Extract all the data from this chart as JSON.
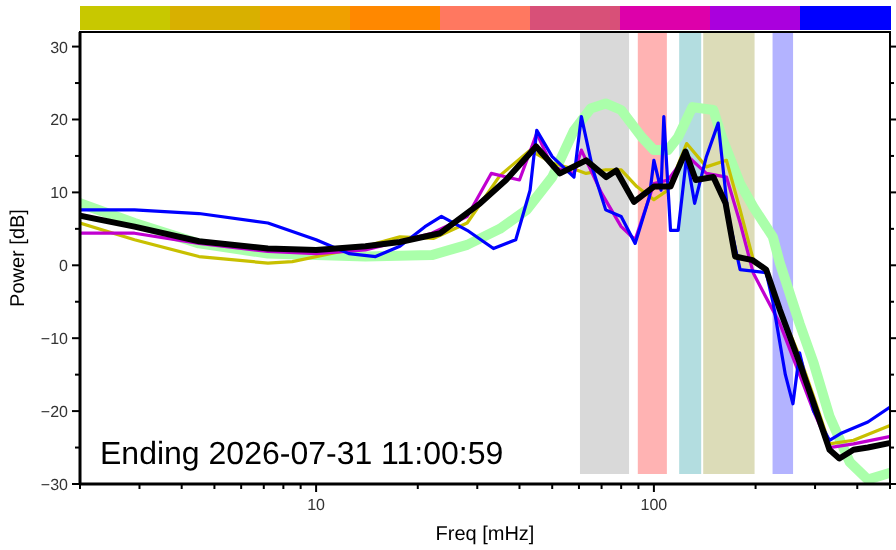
{
  "chart_data": {
    "type": "line",
    "xlabel": "Freq [mHz]",
    "ylabel": "Power [dB]",
    "log": "x",
    "xlim": [
      2,
      500
    ],
    "ylim": [
      -30,
      32
    ],
    "xticks": [
      {
        "value": 2,
        "label": null
      },
      {
        "value": 3,
        "label": null
      },
      {
        "value": 4,
        "label": null
      },
      {
        "value": 5,
        "label": null
      },
      {
        "value": 6,
        "label": null
      },
      {
        "value": 7,
        "label": null
      },
      {
        "value": 8,
        "label": null
      },
      {
        "value": 9,
        "label": null
      },
      10,
      {
        "value": 20,
        "label": null
      },
      {
        "value": 30,
        "label": null
      },
      {
        "value": 40,
        "label": null
      },
      {
        "value": 50,
        "label": null
      },
      {
        "value": 60,
        "label": null
      },
      {
        "value": 70,
        "label": null
      },
      {
        "value": 80,
        "label": null
      },
      {
        "value": 90,
        "label": null
      },
      100,
      {
        "value": 200,
        "label": null
      },
      {
        "value": 300,
        "label": null
      },
      {
        "value": 400,
        "label": null
      },
      {
        "value": 500,
        "label": null
      }
    ],
    "yticks": [
      -30,
      {
        "value": -25,
        "label": null
      },
      -20,
      {
        "value": -15,
        "label": null
      },
      -10,
      {
        "value": -5,
        "label": null
      },
      0,
      {
        "value": 5,
        "label": null
      },
      10,
      {
        "value": 15,
        "label": null
      },
      20,
      {
        "value": 25,
        "label": null
      },
      30
    ],
    "bands": [
      {
        "axis": "x",
        "from": 60,
        "to": 85,
        "color": "#d9d9d9"
      },
      {
        "axis": "x",
        "from": 89,
        "to": 110,
        "color": "#ffb3b3"
      },
      {
        "axis": "x",
        "from": 118,
        "to": 139,
        "color": "#b3dde0"
      },
      {
        "axis": "x",
        "from": 139,
        "to": 200,
        "color": "#dcdcb8"
      },
      {
        "axis": "x",
        "from": 223,
        "to": 260,
        "color": "#b3b3ff"
      }
    ],
    "annotations": [
      "Ending 2026-07-31 11:00:59"
    ],
    "series": [
      {
        "color": "#aaffaa",
        "x": [
          2,
          2.9,
          4.5,
          7.2,
          10,
          14,
          22,
          28,
          35,
          42,
          50,
          58,
          65,
          72,
          80,
          92,
          100,
          110,
          118,
          130,
          150,
          160,
          180,
          197,
          225,
          236,
          270,
          297,
          331,
          380,
          430,
          498
        ],
        "values": [
          8.5,
          5.8,
          3,
          1.6,
          1.4,
          1.2,
          1.4,
          2.8,
          5,
          7.6,
          12.1,
          18.5,
          21.5,
          22.2,
          21.3,
          17.6,
          15.8,
          15.8,
          17.6,
          21.7,
          21.3,
          17.2,
          11.2,
          8,
          3.9,
          0.3,
          -8,
          -13.4,
          -20.7,
          -27,
          -29.4,
          -28.5
        ]
      },
      {
        "color": "#c8c000",
        "x": [
          2,
          2.9,
          4.5,
          7.2,
          8.5,
          14,
          17.7,
          22.3,
          28,
          35,
          43,
          50,
          58,
          63,
          72,
          80,
          89,
          100,
          110,
          125,
          143,
          164,
          180,
          197,
          215,
          236,
          270,
          297,
          331,
          390,
          498
        ],
        "values": [
          5.8,
          3.5,
          1.2,
          0.3,
          0.5,
          2.6,
          3.9,
          3.7,
          5.8,
          12.3,
          15.8,
          14,
          13.2,
          12.6,
          13.1,
          13.1,
          10.8,
          9,
          10.3,
          16.7,
          13.5,
          14.4,
          7.6,
          0.7,
          -0.5,
          -6,
          -12.5,
          -18,
          -24.5,
          -24,
          -22
        ]
      },
      {
        "color": "#c000d0",
        "x": [
          2,
          2.9,
          4.5,
          7.2,
          10,
          14,
          22,
          28,
          33,
          40,
          45,
          50,
          58,
          61,
          70,
          80,
          88,
          100,
          110,
          125,
          143,
          164,
          180,
          197,
          236,
          270,
          297,
          331,
          390,
          498
        ],
        "values": [
          4.4,
          4.4,
          3,
          1.9,
          1.6,
          2.1,
          4.4,
          6.7,
          12.6,
          11.7,
          18.1,
          13.5,
          12.6,
          15.8,
          9.9,
          5.3,
          3.5,
          11.2,
          11.7,
          15.1,
          12.6,
          12.1,
          5.8,
          -1.1,
          -8,
          -15,
          -20,
          -25,
          -24.5,
          -23.5
        ]
      },
      {
        "color": "#0000ff",
        "x": [
          2,
          2.9,
          4.5,
          7.2,
          10,
          12.5,
          15,
          17.7,
          21,
          23.5,
          28,
          33.5,
          39,
          43,
          45,
          50,
          58,
          61,
          66,
          72,
          80,
          88,
          97,
          100,
          105,
          107,
          112,
          118,
          125,
          132,
          143,
          155,
          166,
          180,
          215,
          225,
          245,
          258,
          270,
          297,
          331,
          360,
          430,
          498
        ],
        "values": [
          7.6,
          7.6,
          7.1,
          5.8,
          3.5,
          1.6,
          1.2,
          2.6,
          5.3,
          6.7,
          4.8,
          2.3,
          3.5,
          10.3,
          18.5,
          14.9,
          12.1,
          20.4,
          13.1,
          7.6,
          6.7,
          3,
          9.4,
          14.4,
          10.3,
          20.4,
          4.8,
          4.8,
          14.9,
          8.5,
          14.9,
          19.5,
          6.7,
          -0.6,
          -1,
          -5,
          -15,
          -19,
          -12,
          -20,
          -24,
          -23,
          -21.5,
          -19.5
        ]
      },
      {
        "color": "#000000",
        "x": [
          2,
          2.9,
          4.5,
          7.2,
          10,
          14,
          17.7,
          23.3,
          30.6,
          36.5,
          44.8,
          52.7,
          63,
          72.3,
          77.4,
          87.3,
          100,
          112,
          124,
          133,
          150,
          163,
          174,
          196,
          215,
          236,
          270,
          297,
          331,
          354,
          390,
          430,
          498
        ],
        "values": [
          6.8,
          5.3,
          3.3,
          2.3,
          2.1,
          2.6,
          3.2,
          4.4,
          8.5,
          11.7,
          16.3,
          12.6,
          14.4,
          12.1,
          13,
          8.7,
          10.8,
          10.8,
          15.6,
          11.7,
          12.1,
          8.5,
          1.2,
          0.7,
          -0.6,
          -6.1,
          -13.4,
          -18.9,
          -25.3,
          -26.5,
          -25.3,
          -25,
          -24.4
        ]
      }
    ]
  }
}
